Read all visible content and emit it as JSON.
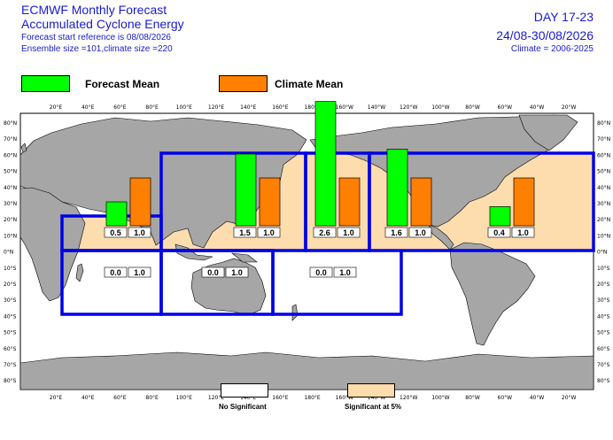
{
  "header": {
    "title_line1": "ECMWF Monthly Forecast",
    "title_line2": "Accumulated Cyclone Energy",
    "forecast_start": "Forecast start reference is 08/08/2026",
    "ensemble": "Ensemble size =101,climate size =220",
    "day_range": "DAY 17-23",
    "date_range": "24/08-30/08/2026",
    "climate_period": "Climate = 2006-2025"
  },
  "legend": {
    "forecast_label": "Forecast Mean",
    "forecast_color": "#00ff00",
    "climate_label": "Climate Mean",
    "climate_color": "#ff7f00"
  },
  "bottom_legend": {
    "no_significant_label": "No Significant",
    "no_significant_color": "#ffffff",
    "significant_label": "Significant at 5%",
    "significant_color": "#fddcad"
  },
  "chart_data": {
    "type": "bar",
    "title": "Accumulated Cyclone Energy",
    "x_ticks": [
      "20°E",
      "40°E",
      "60°E",
      "80°E",
      "100°E",
      "120°E",
      "140°E",
      "160°E",
      "180°E",
      "160°W",
      "140°W",
      "120°W",
      "100°W",
      "80°W",
      "60°W",
      "40°W",
      "20°W"
    ],
    "y_ticks": [
      "80°N",
      "70°N",
      "60°N",
      "50°N",
      "40°N",
      "30°N",
      "20°N",
      "10°N",
      "0°N",
      "10°S",
      "20°S",
      "30°S",
      "40°S",
      "50°S",
      "60°S",
      "70°S",
      "80°S"
    ],
    "series_names": [
      "Forecast Mean",
      "Climate Mean"
    ],
    "basins": [
      {
        "forecast": 0.5,
        "climate": 1.0,
        "forecast_label": "0.5",
        "climate_label": "1.0",
        "significant": true
      },
      {
        "forecast": 1.5,
        "climate": 1.0,
        "forecast_label": "1.5",
        "climate_label": "1.0",
        "significant": true
      },
      {
        "forecast": 2.6,
        "climate": 1.0,
        "forecast_label": "2.6",
        "climate_label": "1.0",
        "significant": true
      },
      {
        "forecast": 1.6,
        "climate": 1.0,
        "forecast_label": "1.6",
        "climate_label": "1.0",
        "significant": true
      },
      {
        "forecast": 0.4,
        "climate": 1.0,
        "forecast_label": "0.4",
        "climate_label": "1.0",
        "significant": true
      },
      {
        "forecast": 0.0,
        "climate": 1.0,
        "forecast_label": "0.0",
        "climate_label": "1.0",
        "significant": false
      },
      {
        "forecast": 0.0,
        "climate": 1.0,
        "forecast_label": "0.0",
        "climate_label": "1.0",
        "significant": false
      },
      {
        "forecast": 0.0,
        "climate": 1.0,
        "forecast_label": "0.0",
        "climate_label": "1.0",
        "significant": false
      }
    ]
  }
}
